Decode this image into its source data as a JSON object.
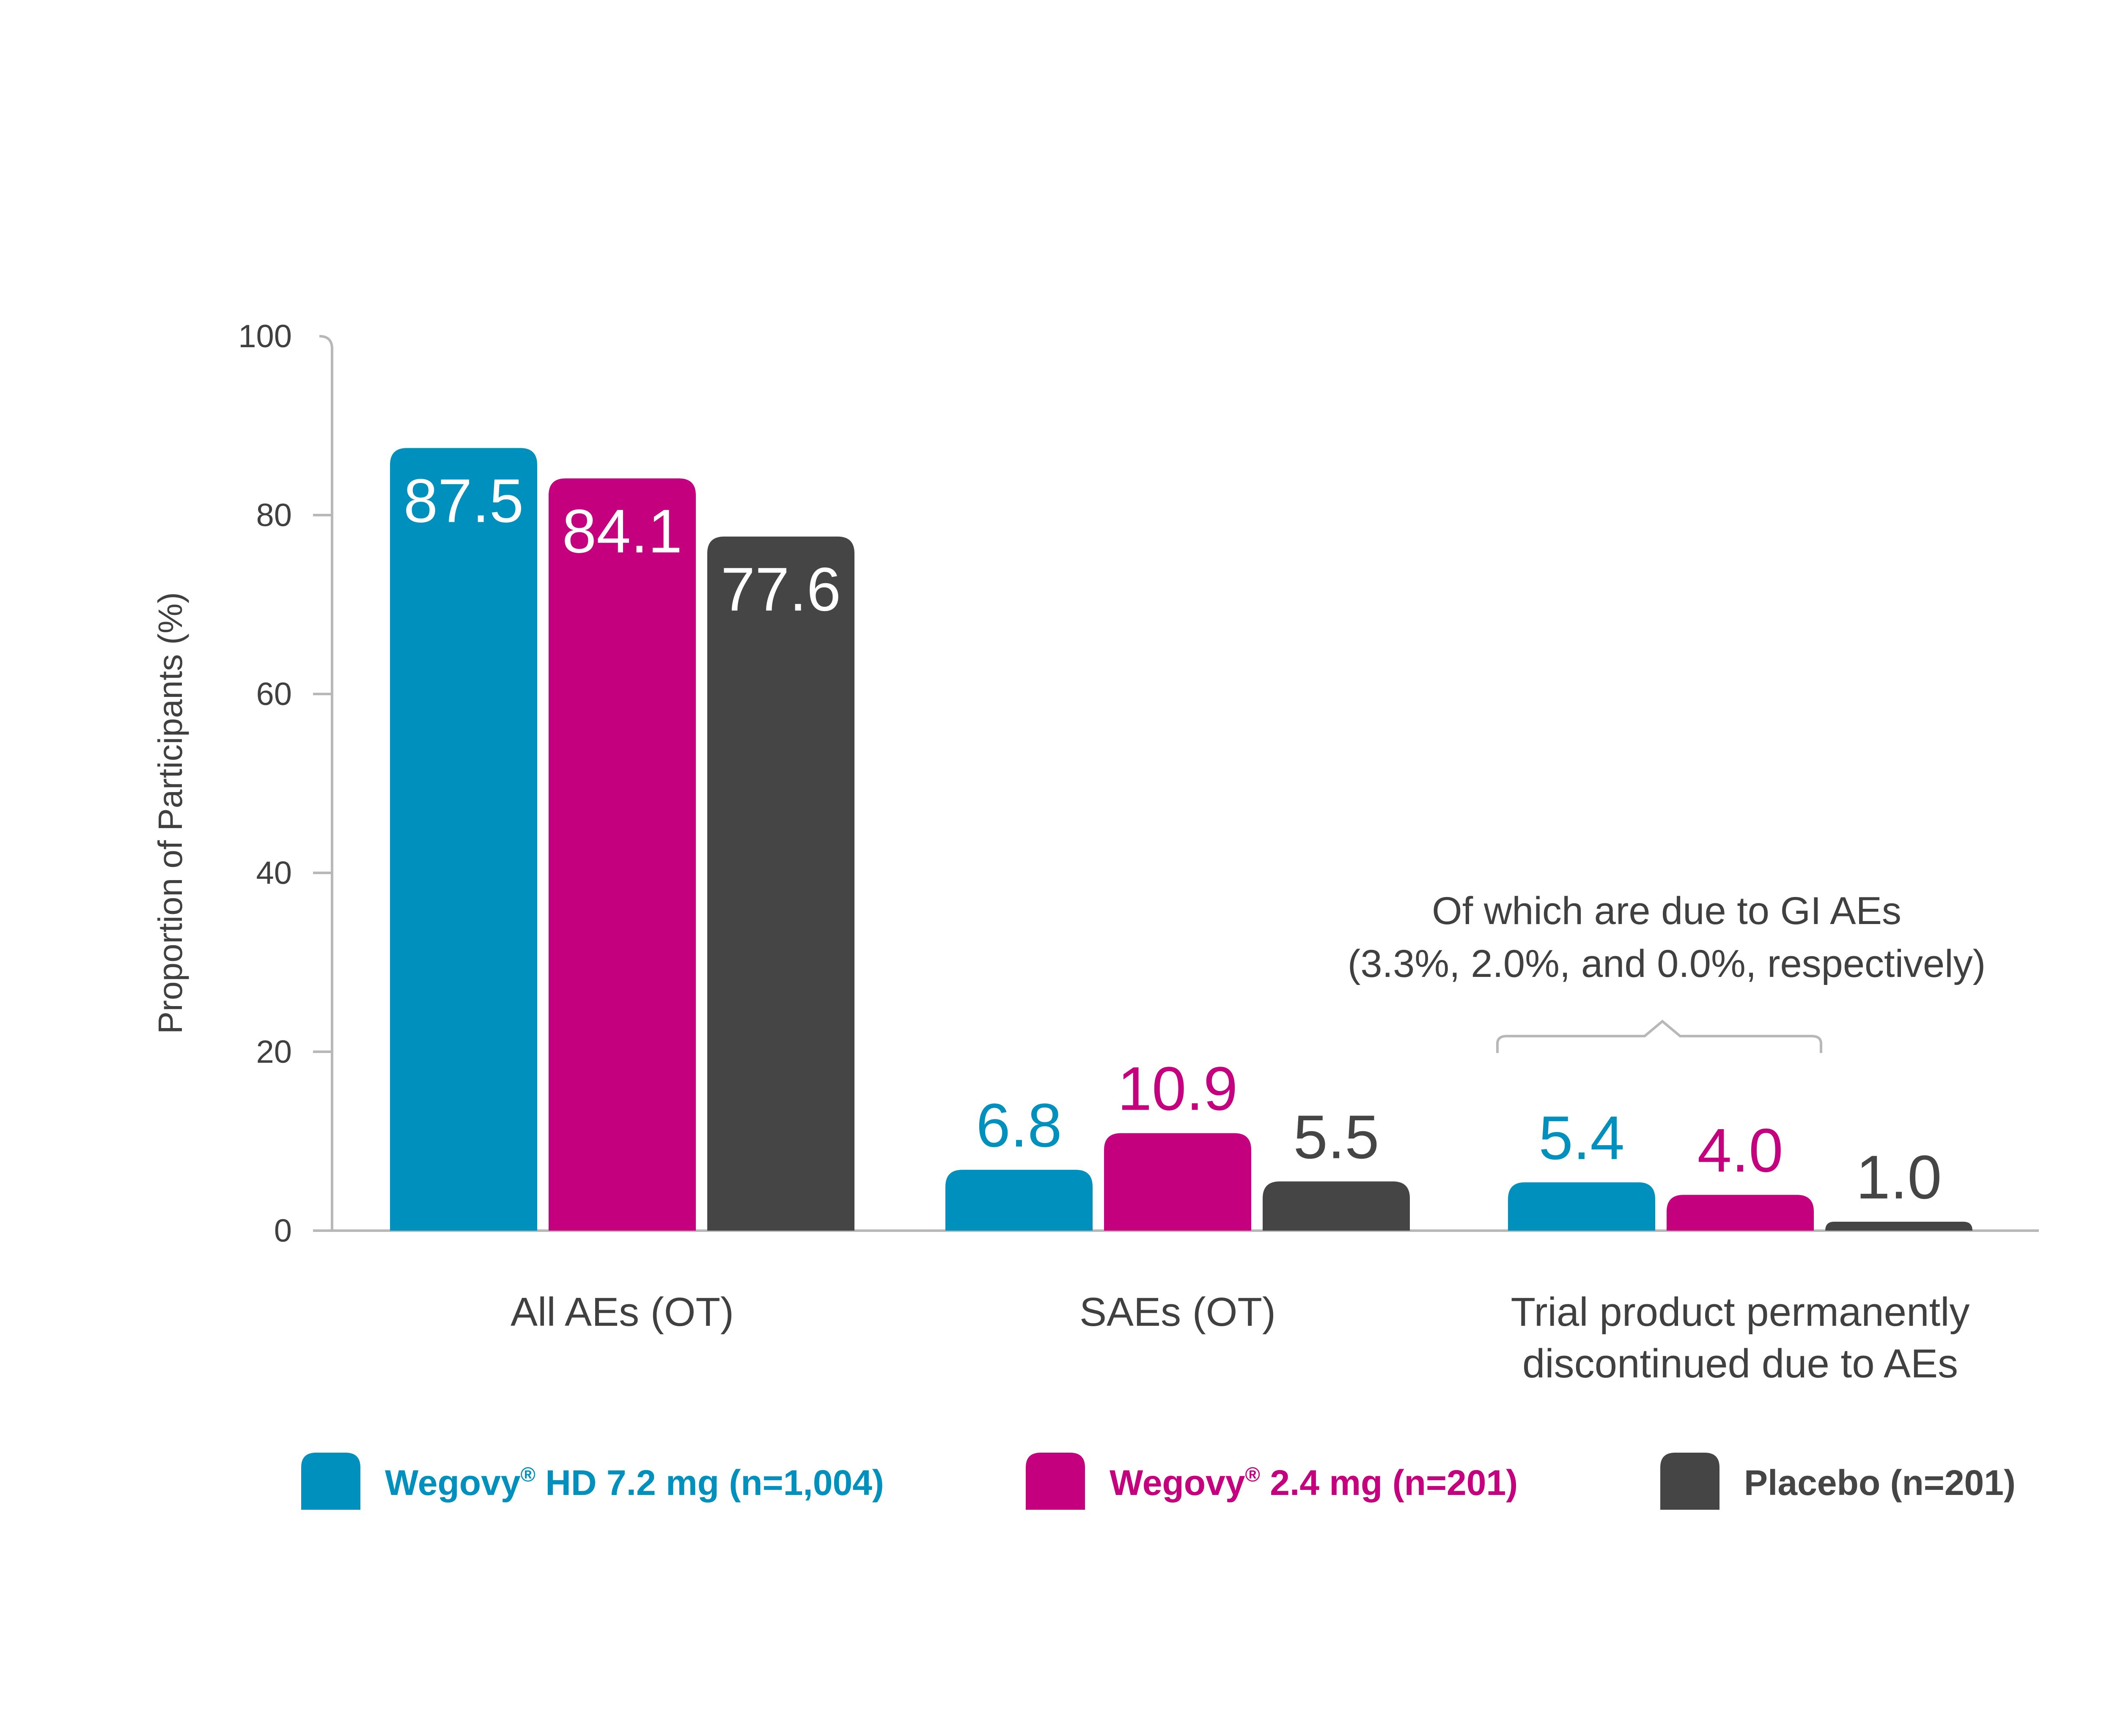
{
  "chart_data": {
    "type": "bar",
    "ylabel": "Proportion of Participants (%)",
    "ylim": [
      0,
      100
    ],
    "yticks": [
      0,
      20,
      40,
      60,
      80,
      100
    ],
    "categories": [
      [
        "All AEs (OT)"
      ],
      [
        "SAEs (OT)"
      ],
      [
        "Trial product permanently",
        "discontinued due to AEs"
      ]
    ],
    "series": [
      {
        "name": "Wegovy® HD 7.2 mg (n=1,004)",
        "color": "#0090be",
        "values": [
          87.5,
          6.8,
          5.4
        ],
        "labels": [
          "87.5",
          "6.8",
          "5.4"
        ]
      },
      {
        "name": "Wegovy® 2.4 mg (n=201)",
        "color": "#c5007f",
        "values": [
          84.1,
          10.9,
          4.0
        ],
        "labels": [
          "84.1",
          "10.9",
          "4.0"
        ]
      },
      {
        "name": "Placebo (n=201)",
        "color": "#454545",
        "values": [
          77.6,
          5.5,
          1.0
        ],
        "labels": [
          "77.6",
          "5.5",
          "1.0"
        ]
      }
    ],
    "annotation": {
      "category_index": 2,
      "lines": [
        "Of which are due to GI AEs",
        "(3.3%, 2.0%, and 0.0%, respectively)"
      ]
    },
    "legend": {
      "placement": "bottom",
      "items": [
        {
          "brand": "Wegovy",
          "mark": "®",
          "rest": " HD 7.2 mg (n=1,004)",
          "color": "#0090be"
        },
        {
          "brand": "Wegovy",
          "mark": "®",
          "rest": " 2.4 mg (n=201)",
          "color": "#c5007f"
        },
        {
          "brand": "Placebo (n=201)",
          "mark": "",
          "rest": "",
          "color": "#454545"
        }
      ]
    },
    "grid": false
  }
}
